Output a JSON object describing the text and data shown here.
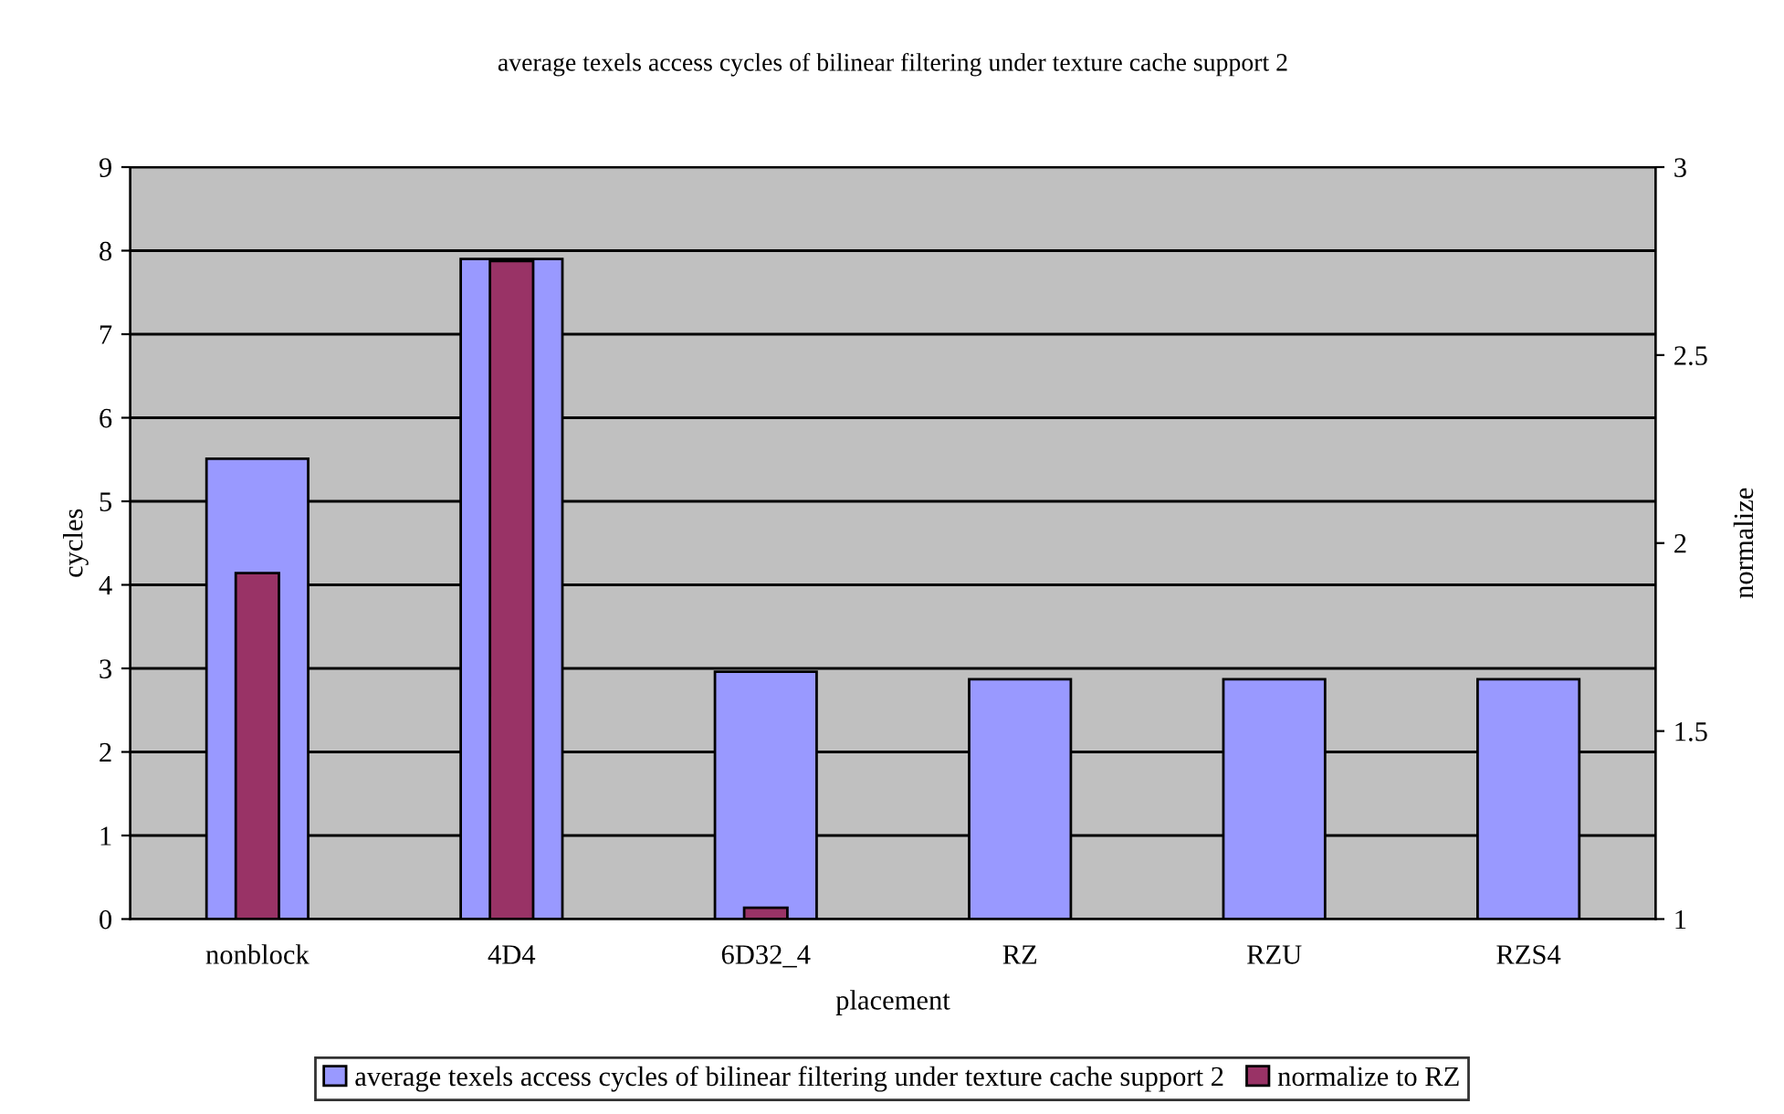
{
  "chart_data": {
    "type": "bar",
    "title": "average texels access cycles of bilinear filtering under texture cache support 2",
    "xlabel": "placement",
    "ylabel": "cycles",
    "y2label": "normalize",
    "categories": [
      "nonblock",
      "4D4",
      "6D32_4",
      "RZ",
      "RZU",
      "RZS4"
    ],
    "series": [
      {
        "name": "average texels access cycles of bilinear filtering under texture cache support 2",
        "color": "#9999ff",
        "values": [
          5.51,
          7.9,
          2.96,
          2.87,
          2.87,
          2.87
        ]
      },
      {
        "name": "normalize to RZ",
        "color": "#993366",
        "axis": "y2",
        "values": [
          1.92,
          2.75,
          1.03,
          1.0,
          1.0,
          1.0
        ]
      }
    ],
    "ylim": [
      0,
      9
    ],
    "yticks": [
      0,
      1,
      2,
      3,
      4,
      5,
      6,
      7,
      8,
      9
    ],
    "y2lim": [
      1,
      3
    ],
    "y2ticks": [
      1,
      1.5,
      2,
      2.5,
      3
    ],
    "grid": "y",
    "legend": "bottom"
  }
}
